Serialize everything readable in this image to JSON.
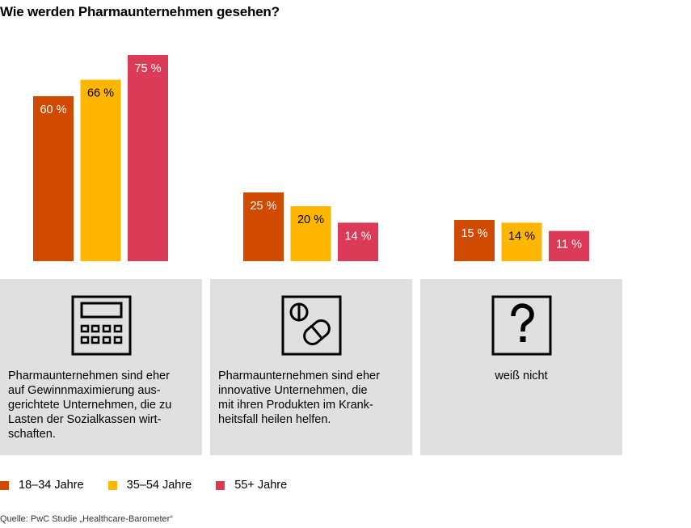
{
  "title": "Wie werden Pharmaunternehmen gesehen?",
  "source": "Quelle: PwC Studie „Healthcare-Barometer“",
  "colors": {
    "series1": "#d04a02",
    "series2": "#ffb600",
    "series3": "#db3b57",
    "panel": "#e0e0e0"
  },
  "chart_data": {
    "type": "bar",
    "title": "Wie werden Pharmaunternehmen gesehen?",
    "categories": [
      "Pharmaunternehmen sind eher auf Gewinnmaximierung aus-gerichtete Unternehmen, die zu Lasten der Sozialkassen wirt-schaften.",
      "Pharmaunternehmen sind eher innovative Unternehmen, die mit ihren Produkten im Krank-heitsfall heilen helfen.",
      "weiß nicht"
    ],
    "series": [
      {
        "name": "18–34 Jahre",
        "values": [
          60,
          25,
          15
        ],
        "labels": [
          "60 %",
          "25 %",
          "15 %"
        ],
        "color": "#d04a02",
        "label_color": "#ffffff"
      },
      {
        "name": "35–54 Jahre",
        "values": [
          66,
          20,
          14
        ],
        "labels": [
          "66 %",
          "20 %",
          "14 %"
        ],
        "color": "#ffb600",
        "label_color": "#000000"
      },
      {
        "name": "55+ Jahre",
        "values": [
          75,
          14,
          11
        ],
        "labels": [
          "75 %",
          "14 %",
          "11 %"
        ],
        "color": "#db3b57",
        "label_color": "#ffffff"
      }
    ],
    "ylim": [
      0,
      75
    ],
    "legend": "bottom-left",
    "grid": false
  },
  "panels": [
    {
      "icon": "calculator-icon",
      "caption_lines": [
        "Pharmaunternehmen sind eher",
        "auf Gewinnmaximierung aus-",
        "gerichtete Unternehmen, die zu",
        "Lasten der Sozialkassen wirt-",
        "schaften."
      ]
    },
    {
      "icon": "pills-icon",
      "caption_lines": [
        "Pharmaunternehmen sind eher",
        "innovative Unternehmen, die",
        "mit ihren Produkten im Krank-",
        "heitsfall heilen helfen."
      ]
    },
    {
      "icon": "question-mark-icon",
      "caption_lines": [
        "weiß nicht"
      ]
    }
  ],
  "legend": [
    {
      "label": "18–34 Jahre",
      "color": "#d04a02"
    },
    {
      "label": "35–54 Jahre",
      "color": "#ffb600"
    },
    {
      "label": "55+ Jahre",
      "color": "#db3b57"
    }
  ]
}
